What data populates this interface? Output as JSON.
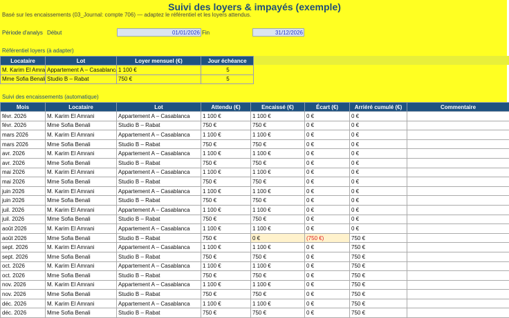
{
  "title": "Suivi des loyers & impayés (exemple)",
  "subtitle": "Basé sur les encaissements (03_Journal: compte 706) — adaptez le référentiel et les loyers attendus.",
  "period": {
    "label": "Période d'analys",
    "start_label": "Début",
    "start": "01/01/2026",
    "end_label": "Fin",
    "end": "31/12/2026"
  },
  "referentiel": {
    "title": "Référentiel loyers (à adapter)",
    "headers": [
      "Locataire",
      "Lot",
      "Loyer mensuel (€)",
      "Jour échéance"
    ],
    "rows": [
      [
        "M. Karim El Amrani",
        "Appartement A – Casablanca",
        "1 100 €",
        "5"
      ],
      [
        "Mme Sofia Benali",
        "Studio B – Rabat",
        "750 €",
        "5"
      ]
    ]
  },
  "suivi": {
    "title": "Suivi des encaissements (automatique)",
    "headers": [
      "Mois",
      "Locataire",
      "Lot",
      "Attendu (€)",
      "Encaissé (€)",
      "Écart (€)",
      "Arriéré cumulé (€)",
      "Commentaire"
    ],
    "rows": [
      [
        "févr. 2026",
        "M. Karim El Amrani",
        "Appartement A – Casablanca",
        "1 100 €",
        "1 100 €",
        "0 €",
        "0 €",
        ""
      ],
      [
        "févr. 2026",
        "Mme Sofia Benali",
        "Studio B – Rabat",
        "750 €",
        "750 €",
        "0 €",
        "0 €",
        ""
      ],
      [
        "mars 2026",
        "M. Karim El Amrani",
        "Appartement A – Casablanca",
        "1 100 €",
        "1 100 €",
        "0 €",
        "0 €",
        ""
      ],
      [
        "mars 2026",
        "Mme Sofia Benali",
        "Studio B – Rabat",
        "750 €",
        "750 €",
        "0 €",
        "0 €",
        ""
      ],
      [
        "avr. 2026",
        "M. Karim El Amrani",
        "Appartement A – Casablanca",
        "1 100 €",
        "1 100 €",
        "0 €",
        "0 €",
        ""
      ],
      [
        "avr. 2026",
        "Mme Sofia Benali",
        "Studio B – Rabat",
        "750 €",
        "750 €",
        "0 €",
        "0 €",
        ""
      ],
      [
        "mai 2026",
        "M. Karim El Amrani",
        "Appartement A – Casablanca",
        "1 100 €",
        "1 100 €",
        "0 €",
        "0 €",
        ""
      ],
      [
        "mai 2026",
        "Mme Sofia Benali",
        "Studio B – Rabat",
        "750 €",
        "750 €",
        "0 €",
        "0 €",
        ""
      ],
      [
        "juin 2026",
        "M. Karim El Amrani",
        "Appartement A – Casablanca",
        "1 100 €",
        "1 100 €",
        "0 €",
        "0 €",
        ""
      ],
      [
        "juin 2026",
        "Mme Sofia Benali",
        "Studio B – Rabat",
        "750 €",
        "750 €",
        "0 €",
        "0 €",
        ""
      ],
      [
        "juil. 2026",
        "M. Karim El Amrani",
        "Appartement A – Casablanca",
        "1 100 €",
        "1 100 €",
        "0 €",
        "0 €",
        ""
      ],
      [
        "juil. 2026",
        "Mme Sofia Benali",
        "Studio B – Rabat",
        "750 €",
        "750 €",
        "0 €",
        "0 €",
        ""
      ],
      [
        "août 2026",
        "M. Karim El Amrani",
        "Appartement A – Casablanca",
        "1 100 €",
        "1 100 €",
        "0 €",
        "0 €",
        ""
      ],
      [
        "août 2026",
        "Mme Sofia Benali",
        "Studio B – Rabat",
        "750 €",
        "0 €",
        "(750 €)",
        "750 €",
        ""
      ],
      [
        "sept. 2026",
        "M. Karim El Amrani",
        "Appartement A – Casablanca",
        "1 100 €",
        "1 100 €",
        "0 €",
        "750 €",
        ""
      ],
      [
        "sept. 2026",
        "Mme Sofia Benali",
        "Studio B – Rabat",
        "750 €",
        "750 €",
        "0 €",
        "750 €",
        ""
      ],
      [
        "oct. 2026",
        "M. Karim El Amrani",
        "Appartement A – Casablanca",
        "1 100 €",
        "1 100 €",
        "0 €",
        "750 €",
        ""
      ],
      [
        "oct. 2026",
        "Mme Sofia Benali",
        "Studio B – Rabat",
        "750 €",
        "750 €",
        "0 €",
        "750 €",
        ""
      ],
      [
        "nov. 2026",
        "M. Karim El Amrani",
        "Appartement A – Casablanca",
        "1 100 €",
        "1 100 €",
        "0 €",
        "750 €",
        ""
      ],
      [
        "nov. 2026",
        "Mme Sofia Benali",
        "Studio B – Rabat",
        "750 €",
        "750 €",
        "0 €",
        "750 €",
        ""
      ],
      [
        "déc. 2026",
        "M. Karim El Amrani",
        "Appartement A – Casablanca",
        "1 100 €",
        "1 100 €",
        "0 €",
        "750 €",
        ""
      ],
      [
        "déc. 2026",
        "Mme Sofia Benali",
        "Studio B – Rabat",
        "750 €",
        "750 €",
        "0 €",
        "750 €",
        ""
      ]
    ]
  },
  "colors": {
    "header_bg": "#1f5280",
    "title": "#1f4e79",
    "highlight": "#fff2cc",
    "negative": "#e02020",
    "yellow": "#ffff22"
  }
}
